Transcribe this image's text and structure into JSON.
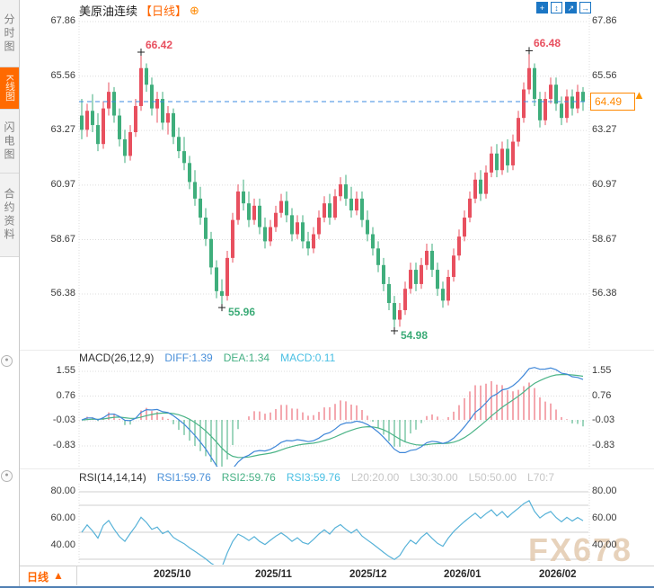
{
  "app": {
    "sidebar": {
      "items": [
        {
          "label": "分时图",
          "active": false
        },
        {
          "label": "K线图",
          "active": true
        },
        {
          "label": "闪电图",
          "active": false
        },
        {
          "label": "合约资料",
          "active": false
        }
      ]
    },
    "header": {
      "title": "美原油连续",
      "period_tag": "【日线】",
      "tool_icons": [
        "pan-crosshair",
        "axis-range",
        "axis-scale",
        "pop-out"
      ]
    },
    "footer": {
      "period_label": "日线"
    },
    "watermark": "FX678"
  },
  "icons": {
    "circle_plus": "⊕",
    "crosshair_plus": "+",
    "vertical_arrows": "↕",
    "ne_arrow": "↗",
    "right_arrow": "→",
    "up_triangle": "▲",
    "toggle_dot": "●"
  },
  "chart_data": {
    "type": "candlestick",
    "title": "美原油连续 日线",
    "x_labels": [
      "2025/10",
      "2025/11",
      "2025/12",
      "2026/01",
      "2026/02"
    ],
    "price_axis": [
      67.86,
      65.56,
      63.27,
      60.97,
      58.67,
      56.38
    ],
    "macd_axis": [
      1.55,
      0.76,
      -0.03,
      -0.83
    ],
    "rsi_axis": [
      80.0,
      60.0,
      40.0
    ],
    "rsi_guide_lines": [
      80,
      70,
      50,
      30
    ],
    "current_price": "64.49",
    "current_price_value": 64.49,
    "annotations": {
      "high1": "66.42",
      "high2": "66.48",
      "low1": "55.96",
      "low2": "54.98"
    },
    "marker_indices": {
      "high1": 11,
      "low1": 26,
      "low2": 58,
      "high2": 83
    },
    "macd_header": {
      "name": "MACD(26,12,9)",
      "diff": "DIFF:1.39",
      "dea": "DEA:1.34",
      "macd": "MACD:0.11"
    },
    "rsi_header": {
      "name": "RSI(14,14,14)",
      "rsi1": "RSI1:59.76",
      "rsi2": "RSI2:59.76",
      "rsi3": "RSI3:59.76",
      "l20": "L20:20.00",
      "l30": "L30:30.00",
      "l50": "L50:50.00",
      "l70": "L70:7"
    },
    "candles": [
      [
        63.9,
        64.6,
        62.9,
        63.3
      ],
      [
        63.3,
        64.4,
        63.0,
        64.1
      ],
      [
        64.1,
        64.8,
        63.2,
        63.5
      ],
      [
        63.5,
        64.0,
        62.4,
        62.7
      ],
      [
        62.7,
        64.5,
        62.5,
        64.2
      ],
      [
        64.2,
        65.3,
        63.9,
        64.9
      ],
      [
        64.9,
        65.1,
        63.6,
        63.9
      ],
      [
        63.9,
        64.2,
        62.6,
        62.9
      ],
      [
        62.9,
        63.3,
        61.9,
        62.2
      ],
      [
        62.2,
        63.5,
        62.0,
        63.2
      ],
      [
        63.2,
        64.6,
        63.0,
        64.3
      ],
      [
        64.3,
        66.42,
        64.1,
        65.9
      ],
      [
        65.9,
        66.1,
        64.9,
        65.2
      ],
      [
        65.2,
        65.5,
        63.9,
        64.2
      ],
      [
        64.2,
        64.9,
        63.6,
        64.6
      ],
      [
        64.6,
        64.9,
        63.3,
        63.6
      ],
      [
        63.6,
        64.3,
        63.1,
        64.0
      ],
      [
        64.0,
        64.2,
        62.7,
        63.0
      ],
      [
        63.0,
        63.4,
        62.1,
        62.4
      ],
      [
        62.4,
        63.0,
        61.6,
        61.9
      ],
      [
        61.9,
        62.2,
        60.8,
        61.1
      ],
      [
        61.1,
        61.6,
        60.1,
        60.4
      ],
      [
        60.4,
        60.9,
        59.3,
        59.6
      ],
      [
        59.6,
        60.0,
        58.4,
        58.7
      ],
      [
        58.7,
        59.0,
        57.2,
        57.5
      ],
      [
        57.5,
        57.8,
        56.2,
        56.5
      ],
      [
        56.5,
        57.0,
        55.96,
        56.3
      ],
      [
        56.3,
        58.2,
        56.1,
        57.9
      ],
      [
        57.9,
        59.8,
        57.7,
        59.5
      ],
      [
        59.5,
        61.0,
        59.3,
        60.7
      ],
      [
        60.7,
        61.2,
        59.9,
        60.2
      ],
      [
        60.2,
        60.7,
        59.2,
        59.5
      ],
      [
        59.5,
        60.4,
        59.3,
        60.1
      ],
      [
        60.1,
        60.4,
        58.9,
        59.2
      ],
      [
        59.2,
        59.6,
        58.3,
        58.6
      ],
      [
        58.6,
        59.5,
        58.4,
        59.2
      ],
      [
        59.2,
        60.1,
        59.0,
        59.8
      ],
      [
        59.8,
        60.6,
        59.6,
        60.3
      ],
      [
        60.3,
        60.7,
        59.4,
        59.7
      ],
      [
        59.7,
        60.0,
        58.6,
        58.9
      ],
      [
        58.9,
        59.7,
        58.7,
        59.4
      ],
      [
        59.4,
        59.7,
        58.3,
        58.6
      ],
      [
        58.6,
        59.0,
        58.0,
        58.3
      ],
      [
        58.3,
        59.2,
        58.1,
        58.9
      ],
      [
        58.9,
        59.9,
        58.7,
        59.6
      ],
      [
        59.6,
        60.5,
        59.4,
        60.2
      ],
      [
        60.2,
        60.6,
        59.3,
        59.6
      ],
      [
        59.6,
        60.8,
        59.5,
        60.5
      ],
      [
        60.5,
        61.3,
        60.3,
        61.0
      ],
      [
        61.0,
        61.4,
        60.1,
        60.4
      ],
      [
        60.4,
        60.9,
        59.6,
        59.9
      ],
      [
        59.9,
        60.7,
        59.7,
        60.4
      ],
      [
        60.4,
        60.7,
        59.2,
        59.5
      ],
      [
        59.5,
        59.9,
        58.6,
        58.9
      ],
      [
        58.9,
        59.2,
        58.0,
        58.3
      ],
      [
        58.3,
        58.6,
        57.3,
        57.6
      ],
      [
        57.6,
        57.9,
        56.5,
        56.8
      ],
      [
        56.8,
        57.1,
        55.7,
        56.0
      ],
      [
        56.0,
        56.3,
        54.98,
        55.3
      ],
      [
        55.3,
        56.0,
        55.0,
        55.7
      ],
      [
        55.7,
        56.9,
        55.5,
        56.6
      ],
      [
        56.6,
        57.7,
        56.4,
        57.4
      ],
      [
        57.4,
        57.7,
        56.5,
        56.8
      ],
      [
        56.8,
        57.9,
        56.6,
        57.6
      ],
      [
        57.6,
        58.5,
        57.4,
        58.2
      ],
      [
        58.2,
        58.5,
        57.1,
        57.4
      ],
      [
        57.4,
        57.7,
        56.3,
        56.6
      ],
      [
        56.6,
        56.9,
        55.8,
        56.1
      ],
      [
        56.1,
        57.4,
        55.9,
        57.1
      ],
      [
        57.1,
        58.3,
        56.9,
        58.0
      ],
      [
        58.0,
        59.1,
        57.8,
        58.8
      ],
      [
        58.8,
        59.9,
        58.6,
        59.6
      ],
      [
        59.6,
        60.7,
        59.4,
        60.4
      ],
      [
        60.4,
        61.5,
        60.2,
        61.2
      ],
      [
        61.2,
        61.6,
        60.3,
        60.6
      ],
      [
        60.6,
        61.8,
        60.4,
        61.5
      ],
      [
        61.5,
        62.6,
        61.3,
        62.3
      ],
      [
        62.3,
        62.7,
        61.3,
        61.6
      ],
      [
        61.6,
        62.8,
        61.4,
        62.5
      ],
      [
        62.5,
        62.9,
        61.5,
        61.8
      ],
      [
        61.8,
        63.1,
        61.6,
        62.8
      ],
      [
        62.8,
        64.1,
        62.6,
        63.8
      ],
      [
        63.8,
        65.3,
        63.6,
        65.0
      ],
      [
        65.0,
        66.48,
        64.8,
        65.9
      ],
      [
        65.9,
        66.1,
        64.3,
        64.6
      ],
      [
        64.6,
        64.9,
        63.4,
        63.7
      ],
      [
        63.7,
        64.9,
        63.5,
        64.6
      ],
      [
        64.6,
        65.5,
        64.4,
        65.2
      ],
      [
        65.2,
        65.5,
        64.1,
        64.4
      ],
      [
        64.4,
        64.7,
        63.5,
        63.8
      ],
      [
        63.8,
        65.0,
        63.6,
        64.7
      ],
      [
        64.7,
        65.0,
        63.9,
        64.2
      ],
      [
        64.2,
        65.2,
        64.0,
        64.9
      ],
      [
        64.9,
        65.1,
        64.1,
        64.49
      ]
    ]
  },
  "colors": {
    "up": "#e8505f",
    "down": "#3fae7c",
    "accent_orange": "#ff6600",
    "dashed_line": "#3b8be2",
    "diff_line": "#3f87d8",
    "dea_line": "#4bb487",
    "rsi_line": "#57b2d8",
    "grid": "#dcdcdc",
    "rsi_grid": "#cfcfcf",
    "axis_text": "#3a3a3a",
    "marker": "#222222"
  }
}
